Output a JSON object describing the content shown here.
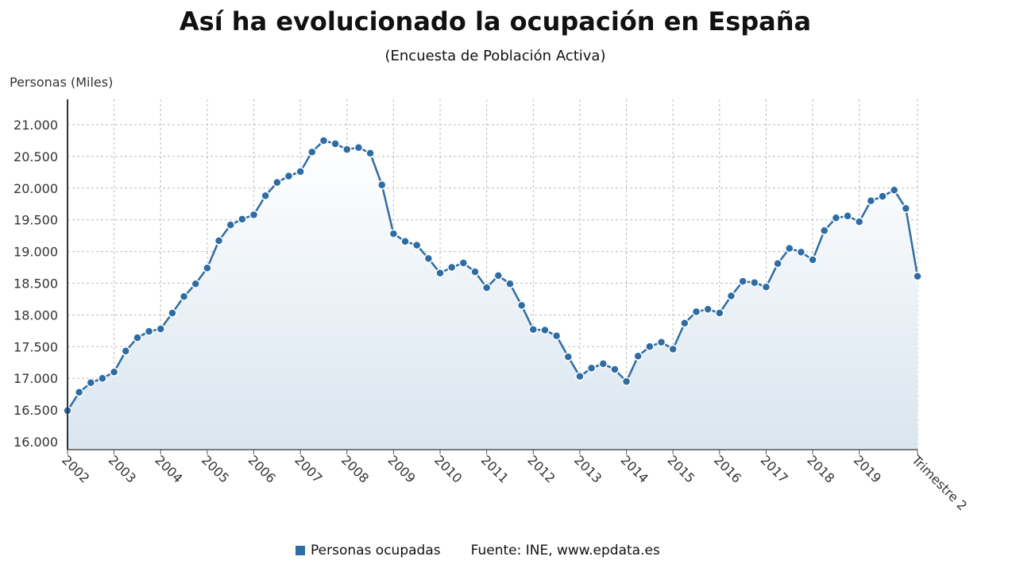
{
  "chart_data": {
    "type": "area",
    "title": "Así ha evolucionado la ocupación en España",
    "subtitle": "(Encuesta de Población Activa)",
    "ylabel": "Personas (Miles)",
    "xlabel": "",
    "ylim": [
      16000,
      21000
    ],
    "yticks": [
      "16.000",
      "16.500",
      "17.000",
      "17.500",
      "18.000",
      "18.500",
      "19.000",
      "19.500",
      "20.000",
      "20.500",
      "21.000"
    ],
    "yvalues": [
      16000,
      16500,
      17000,
      17500,
      18000,
      18500,
      19000,
      19500,
      20000,
      20500,
      21000
    ],
    "xticks": [
      "2002",
      "2003",
      "2004",
      "2005",
      "2006",
      "2007",
      "2008",
      "2009",
      "2010",
      "2011",
      "2012",
      "2013",
      "2014",
      "2015",
      "2016",
      "2017",
      "2018",
      "2019",
      "Trimestre 2"
    ],
    "grid": true,
    "color": "#2e6da4",
    "legend_position": "bottom",
    "series": [
      {
        "name": "Personas ocupadas",
        "x": [
          "2002T1",
          "2002T2",
          "2002T3",
          "2002T4",
          "2003T1",
          "2003T2",
          "2003T3",
          "2003T4",
          "2004T1",
          "2004T2",
          "2004T3",
          "2004T4",
          "2005T1",
          "2005T2",
          "2005T3",
          "2005T4",
          "2006T1",
          "2006T2",
          "2006T3",
          "2006T4",
          "2007T1",
          "2007T2",
          "2007T3",
          "2007T4",
          "2008T1",
          "2008T2",
          "2008T3",
          "2008T4",
          "2009T1",
          "2009T2",
          "2009T3",
          "2009T4",
          "2010T1",
          "2010T2",
          "2010T3",
          "2010T4",
          "2011T1",
          "2011T2",
          "2011T3",
          "2011T4",
          "2012T1",
          "2012T2",
          "2012T3",
          "2012T4",
          "2013T1",
          "2013T2",
          "2013T3",
          "2013T4",
          "2014T1",
          "2014T2",
          "2014T3",
          "2014T4",
          "2015T1",
          "2015T2",
          "2015T3",
          "2015T4",
          "2016T1",
          "2016T2",
          "2016T3",
          "2016T4",
          "2017T1",
          "2017T2",
          "2017T3",
          "2017T4",
          "2018T1",
          "2018T2",
          "2018T3",
          "2018T4",
          "2019T1",
          "2019T2",
          "2019T3",
          "2019T4",
          "2020T1",
          "2020T2"
        ],
        "values": [
          16490,
          16780,
          16930,
          17000,
          17100,
          17430,
          17640,
          17740,
          17780,
          18030,
          18290,
          18490,
          18740,
          19170,
          19420,
          19510,
          19580,
          19880,
          20090,
          20190,
          20260,
          20570,
          20750,
          20700,
          20610,
          20640,
          20550,
          20050,
          19280,
          19160,
          19100,
          18890,
          18660,
          18750,
          18820,
          18680,
          18430,
          18620,
          18490,
          18150,
          17770,
          17760,
          17670,
          17340,
          17030,
          17160,
          17230,
          17140,
          16950,
          17350,
          17500,
          17570,
          17460,
          17870,
          18050,
          18090,
          18030,
          18300,
          18530,
          18510,
          18440,
          18810,
          19050,
          18990,
          18870,
          19330,
          19530,
          19560,
          19470,
          19800,
          19870,
          19970,
          19680,
          18610
        ]
      }
    ],
    "source": "Fuente: INE, www.epdata.es"
  }
}
